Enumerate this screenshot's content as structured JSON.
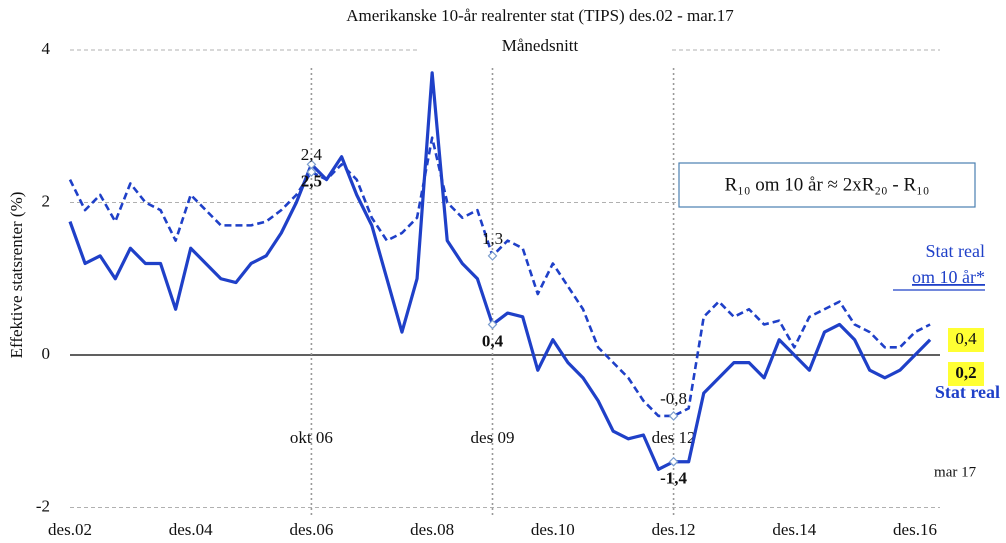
{
  "chart_data": {
    "type": "line",
    "title": "Amerikanske  10-år realrenter stat (TIPS) des.02 - mar.17",
    "subtitle": "Månedsnitt",
    "y_label": "Effektive statsrenter (%)",
    "formula": "R₁₀ om 10 år ≈ 2xR₂₀ - R₁₀",
    "annotations": [
      "okt 06",
      "des 09",
      "des 12",
      "mar 17"
    ],
    "categories": [
      "des.02",
      null,
      null,
      null,
      null,
      null,
      null,
      null,
      "des.04",
      null,
      null,
      null,
      null,
      null,
      null,
      null,
      "des.06",
      null,
      null,
      null,
      null,
      null,
      null,
      null,
      "des.08",
      null,
      null,
      null,
      null,
      null,
      null,
      null,
      "des.10",
      null,
      null,
      null,
      null,
      null,
      null,
      null,
      "des.12",
      null,
      null,
      null,
      null,
      null,
      null,
      null,
      "des.14",
      null,
      null,
      null,
      null,
      null,
      null,
      null,
      "des.16",
      null
    ],
    "series": [
      {
        "name": "Stat real",
        "color": "#1f40c8",
        "dashed": false,
        "values": [
          1.75,
          1.2,
          1.3,
          1.0,
          1.4,
          1.2,
          1.2,
          0.6,
          1.4,
          1.2,
          1.0,
          0.95,
          1.2,
          1.3,
          1.6,
          2.0,
          2.5,
          2.3,
          2.6,
          2.1,
          1.7,
          1.0,
          0.3,
          1.0,
          3.7,
          1.5,
          1.2,
          1.0,
          0.4,
          0.55,
          0.5,
          -0.2,
          0.2,
          -0.1,
          -0.3,
          -0.6,
          -1.0,
          -1.1,
          -1.05,
          -1.5,
          -1.4,
          -1.4,
          -0.5,
          -0.3,
          -0.1,
          -0.1,
          -0.3,
          0.2,
          0.0,
          -0.2,
          0.3,
          0.4,
          0.2,
          -0.2,
          -0.3,
          -0.2,
          0.0,
          0.2
        ],
        "value_labels": [
          null,
          null,
          null,
          null,
          null,
          null,
          null,
          null,
          null,
          null,
          null,
          null,
          null,
          null,
          null,
          null,
          "2,5",
          null,
          null,
          null,
          null,
          null,
          null,
          null,
          null,
          null,
          null,
          null,
          "0,4",
          null,
          null,
          null,
          null,
          null,
          null,
          null,
          null,
          null,
          null,
          null,
          "-1,4",
          null,
          null,
          null,
          null,
          null,
          null,
          null,
          null,
          null,
          null,
          null,
          null,
          null,
          null,
          null,
          null,
          "0,2"
        ]
      },
      {
        "name": "Stat real om 10 år*",
        "color": "#1f40c8",
        "dashed": true,
        "values": [
          2.3,
          1.9,
          2.1,
          1.75,
          2.25,
          2.0,
          1.9,
          1.5,
          2.1,
          1.9,
          1.7,
          1.7,
          1.7,
          1.75,
          1.9,
          2.1,
          2.4,
          2.3,
          2.5,
          2.3,
          1.8,
          1.5,
          1.6,
          1.8,
          2.85,
          2.0,
          1.8,
          1.9,
          1.3,
          1.5,
          1.4,
          0.8,
          1.2,
          0.9,
          0.6,
          0.1,
          -0.1,
          -0.3,
          -0.6,
          -0.8,
          -0.8,
          -0.7,
          0.5,
          0.7,
          0.5,
          0.6,
          0.4,
          0.45,
          0.1,
          0.5,
          0.6,
          0.7,
          0.4,
          0.3,
          0.1,
          0.1,
          0.3,
          0.4
        ],
        "value_labels": [
          null,
          null,
          null,
          null,
          null,
          null,
          null,
          null,
          null,
          null,
          null,
          null,
          null,
          null,
          null,
          null,
          "2,4",
          null,
          null,
          null,
          null,
          null,
          null,
          null,
          null,
          null,
          null,
          null,
          "1,3",
          null,
          null,
          null,
          null,
          null,
          null,
          null,
          null,
          null,
          null,
          null,
          "-0,8",
          null,
          null,
          null,
          null,
          null,
          null,
          null,
          null,
          null,
          null,
          null,
          null,
          null,
          null,
          null,
          null,
          "0,4"
        ]
      }
    ],
    "ylim": [
      -2.1,
      4.2
    ],
    "yticks": [
      -2,
      0,
      2,
      4
    ],
    "grid": true
  }
}
